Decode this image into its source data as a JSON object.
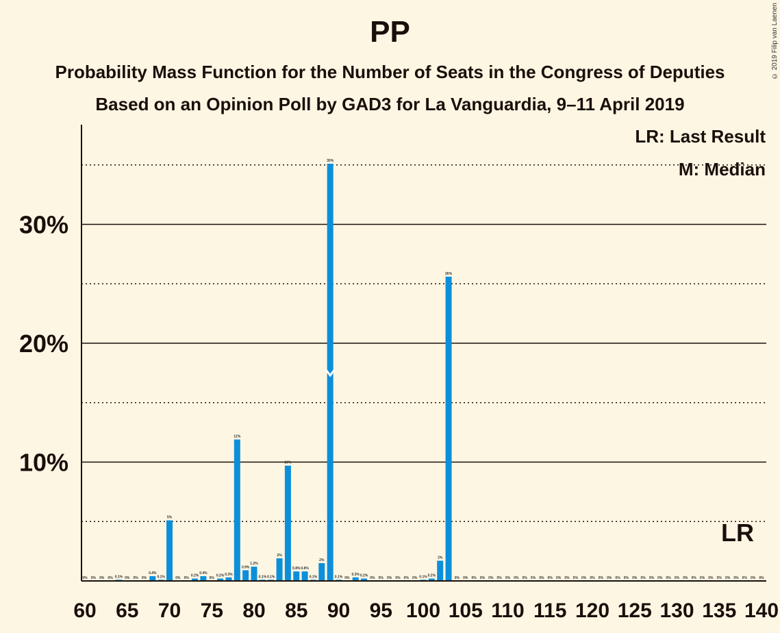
{
  "page": {
    "title": "PP",
    "subtitle1": "Probability Mass Function for the Number of Seats in the Congress of Deputies",
    "subtitle2": "Based on an Opinion Poll by GAD3 for La Vanguardia, 9–11 April 2019",
    "copyright": "© 2019 Filip van Laenen",
    "legend_lr": "LR: Last Result",
    "legend_m": "M: Median"
  },
  "colors": {
    "background": "#fdf6e3",
    "bar": "#0c8fda",
    "text": "#1a0f0a"
  },
  "chart_data": {
    "type": "bar",
    "title": "PP",
    "xlabel": "",
    "ylabel": "",
    "xlim": [
      60,
      140
    ],
    "ylim": [
      0,
      38
    ],
    "y_ticks_major": [
      10,
      20,
      30
    ],
    "y_tick_labels": [
      "10%",
      "20%",
      "30%"
    ],
    "y_gridlines_dotted": [
      5,
      15,
      25,
      35
    ],
    "x_tick_labels": [
      "60",
      "65",
      "70",
      "75",
      "80",
      "85",
      "90",
      "95",
      "100",
      "105",
      "110",
      "115",
      "120",
      "125",
      "130",
      "135",
      "140"
    ],
    "median_seat": 89,
    "last_result_label": "LR",
    "last_result_seat": 137,
    "bars": [
      {
        "seat": 60,
        "value": 0,
        "label": "0%"
      },
      {
        "seat": 61,
        "value": 0,
        "label": "0%"
      },
      {
        "seat": 62,
        "value": 0,
        "label": "0%"
      },
      {
        "seat": 63,
        "value": 0,
        "label": "0%"
      },
      {
        "seat": 64,
        "value": 0.1,
        "label": "0.1%"
      },
      {
        "seat": 65,
        "value": 0,
        "label": "0%"
      },
      {
        "seat": 66,
        "value": 0,
        "label": "0%"
      },
      {
        "seat": 67,
        "value": 0,
        "label": "0%"
      },
      {
        "seat": 68,
        "value": 0.4,
        "label": "0.4%"
      },
      {
        "seat": 69,
        "value": 0.1,
        "label": "0.1%"
      },
      {
        "seat": 70,
        "value": 5.1,
        "label": "5%"
      },
      {
        "seat": 71,
        "value": 0,
        "label": "0%"
      },
      {
        "seat": 72,
        "value": 0,
        "label": "0%"
      },
      {
        "seat": 73,
        "value": 0.2,
        "label": "0.2%"
      },
      {
        "seat": 74,
        "value": 0.4,
        "label": "0.4%"
      },
      {
        "seat": 75,
        "value": 0,
        "label": "0%"
      },
      {
        "seat": 76,
        "value": 0.2,
        "label": "0.2%"
      },
      {
        "seat": 77,
        "value": 0.3,
        "label": "0.3%"
      },
      {
        "seat": 78,
        "value": 11.9,
        "label": "12%"
      },
      {
        "seat": 79,
        "value": 0.9,
        "label": "0.9%"
      },
      {
        "seat": 80,
        "value": 1.2,
        "label": "1.2%"
      },
      {
        "seat": 81,
        "value": 0.1,
        "label": "0.1%"
      },
      {
        "seat": 82,
        "value": 0.1,
        "label": "0.1%"
      },
      {
        "seat": 83,
        "value": 1.9,
        "label": "2%"
      },
      {
        "seat": 84,
        "value": 9.7,
        "label": "10%"
      },
      {
        "seat": 85,
        "value": 0.8,
        "label": "0.8%"
      },
      {
        "seat": 86,
        "value": 0.8,
        "label": "0.8%"
      },
      {
        "seat": 87,
        "value": 0.1,
        "label": "0.1%"
      },
      {
        "seat": 88,
        "value": 1.5,
        "label": "2%"
      },
      {
        "seat": 89,
        "value": 35.1,
        "label": "35%"
      },
      {
        "seat": 90,
        "value": 0.1,
        "label": "0.1%"
      },
      {
        "seat": 91,
        "value": 0,
        "label": "0%"
      },
      {
        "seat": 92,
        "value": 0.3,
        "label": "0.3%"
      },
      {
        "seat": 93,
        "value": 0.2,
        "label": "0.2%"
      },
      {
        "seat": 94,
        "value": 0,
        "label": "0%"
      },
      {
        "seat": 95,
        "value": 0,
        "label": "0%"
      },
      {
        "seat": 96,
        "value": 0,
        "label": "0%"
      },
      {
        "seat": 97,
        "value": 0,
        "label": "0%"
      },
      {
        "seat": 98,
        "value": 0,
        "label": "0%"
      },
      {
        "seat": 99,
        "value": 0,
        "label": "0%"
      },
      {
        "seat": 100,
        "value": 0.1,
        "label": "0.1%"
      },
      {
        "seat": 101,
        "value": 0.2,
        "label": "0.2%"
      },
      {
        "seat": 102,
        "value": 1.7,
        "label": "2%"
      },
      {
        "seat": 103,
        "value": 25.6,
        "label": "26%"
      },
      {
        "seat": 104,
        "value": 0,
        "label": "0%"
      },
      {
        "seat": 105,
        "value": 0,
        "label": "0%"
      },
      {
        "seat": 106,
        "value": 0,
        "label": "0%"
      },
      {
        "seat": 107,
        "value": 0,
        "label": "0%"
      },
      {
        "seat": 108,
        "value": 0,
        "label": "0%"
      },
      {
        "seat": 109,
        "value": 0,
        "label": "0%"
      },
      {
        "seat": 110,
        "value": 0,
        "label": "0%"
      },
      {
        "seat": 111,
        "value": 0,
        "label": "0%"
      },
      {
        "seat": 112,
        "value": 0,
        "label": "0%"
      },
      {
        "seat": 113,
        "value": 0,
        "label": "0%"
      },
      {
        "seat": 114,
        "value": 0,
        "label": "0%"
      },
      {
        "seat": 115,
        "value": 0,
        "label": "0%"
      },
      {
        "seat": 116,
        "value": 0,
        "label": "0%"
      },
      {
        "seat": 117,
        "value": 0,
        "label": "0%"
      },
      {
        "seat": 118,
        "value": 0,
        "label": "0%"
      },
      {
        "seat": 119,
        "value": 0,
        "label": "0%"
      },
      {
        "seat": 120,
        "value": 0,
        "label": "0%"
      },
      {
        "seat": 121,
        "value": 0,
        "label": "0%"
      },
      {
        "seat": 122,
        "value": 0,
        "label": "0%"
      },
      {
        "seat": 123,
        "value": 0,
        "label": "0%"
      },
      {
        "seat": 124,
        "value": 0,
        "label": "0%"
      },
      {
        "seat": 125,
        "value": 0,
        "label": "0%"
      },
      {
        "seat": 126,
        "value": 0,
        "label": "0%"
      },
      {
        "seat": 127,
        "value": 0,
        "label": "0%"
      },
      {
        "seat": 128,
        "value": 0,
        "label": "0%"
      },
      {
        "seat": 129,
        "value": 0,
        "label": "0%"
      },
      {
        "seat": 130,
        "value": 0,
        "label": "0%"
      },
      {
        "seat": 131,
        "value": 0,
        "label": "0%"
      },
      {
        "seat": 132,
        "value": 0,
        "label": "0%"
      },
      {
        "seat": 133,
        "value": 0,
        "label": "0%"
      },
      {
        "seat": 134,
        "value": 0,
        "label": "0%"
      },
      {
        "seat": 135,
        "value": 0,
        "label": "0%"
      },
      {
        "seat": 136,
        "value": 0,
        "label": "0%"
      },
      {
        "seat": 137,
        "value": 0,
        "label": "0%"
      },
      {
        "seat": 138,
        "value": 0,
        "label": "0%"
      },
      {
        "seat": 139,
        "value": 0,
        "label": "0%"
      },
      {
        "seat": 140,
        "value": 0,
        "label": "0%"
      }
    ]
  }
}
